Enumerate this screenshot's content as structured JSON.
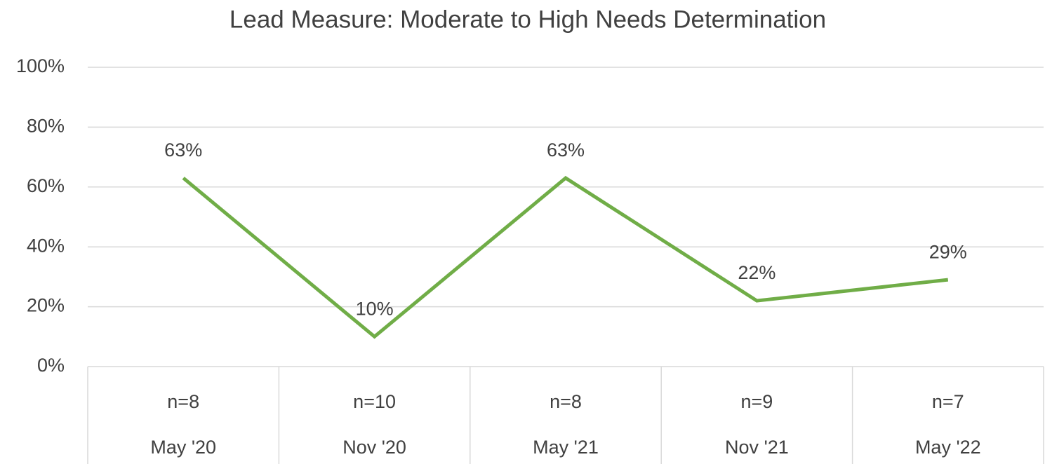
{
  "chart_data": {
    "type": "line",
    "title": "Lead Measure:  Moderate to High Needs Determination",
    "categories": [
      "May '20",
      "Nov '20",
      "May '21",
      "Nov '21",
      "May '22"
    ],
    "category_sublabels": [
      "n=8",
      "n=10",
      "n=8",
      "n=9",
      "n=7"
    ],
    "series": [
      {
        "name": "Moderate to High Needs Determination",
        "color": "#70ad47",
        "values": [
          63,
          10,
          63,
          22,
          29
        ],
        "value_labels": [
          "63%",
          "10%",
          "63%",
          "22%",
          "29%"
        ]
      }
    ],
    "ylim": [
      0,
      100
    ],
    "yticks": [
      {
        "value": 0,
        "label": "0%"
      },
      {
        "value": 20,
        "label": "20%"
      },
      {
        "value": 40,
        "label": "40%"
      },
      {
        "value": 60,
        "label": "60%"
      },
      {
        "value": 80,
        "label": "80%"
      },
      {
        "value": 100,
        "label": "100%"
      }
    ],
    "grid": true
  }
}
